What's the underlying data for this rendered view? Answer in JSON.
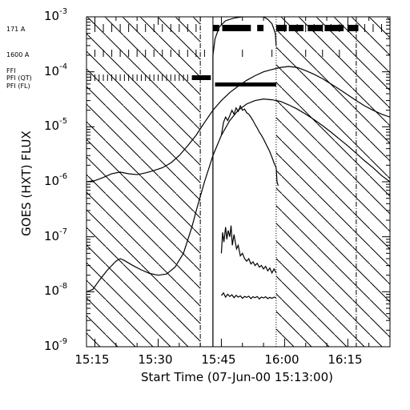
{
  "chart_data": {
    "type": "line",
    "title": "",
    "xlabel": "Start Time (07-Jun-00 15:13:00)",
    "ylabel": "GOES (HXT) FLUX",
    "xlim_minutes": [
      0,
      72
    ],
    "x_tick_labels": [
      {
        "label": "15:15",
        "minute": 2
      },
      {
        "label": "15:30",
        "minute": 17
      },
      {
        "label": "15:45",
        "minute": 32
      },
      {
        "label": "16:00",
        "minute": 47
      },
      {
        "label": "16:15",
        "minute": 62
      }
    ],
    "ylim": [
      1e-09,
      0.001
    ],
    "y_scale": "log",
    "y_ticks": [
      {
        "base": "10",
        "exp": "-9",
        "value": 1e-09
      },
      {
        "base": "10",
        "exp": "-8",
        "value": 1e-08
      },
      {
        "base": "10",
        "exp": "-7",
        "value": 1e-07
      },
      {
        "base": "10",
        "exp": "-6",
        "value": 1e-06
      },
      {
        "base": "10",
        "exp": "-5",
        "value": 1e-05
      },
      {
        "base": "10",
        "exp": "-4",
        "value": 0.0001
      },
      {
        "base": "10",
        "exp": "-3",
        "value": 0.001
      }
    ],
    "instrument_labels": [
      "171 A",
      "1600 A",
      "FFI",
      "PFI (QT)",
      "PFI (FL)"
    ],
    "hatched_intervals_minutes": [
      [
        0,
        27
      ],
      [
        45,
        72
      ]
    ],
    "window_lines_minutes": {
      "dash_dot": 27,
      "solid": 30,
      "dotted": 45,
      "dash_dot_2": 64
    },
    "series": [
      {
        "points": [
          [
            0,
            1e-06
          ],
          [
            2,
            1.05e-06
          ],
          [
            4,
            1.2e-06
          ],
          [
            6,
            1.4e-06
          ],
          [
            8,
            1.5e-06
          ],
          [
            10,
            1.4e-06
          ],
          [
            12,
            1.35e-06
          ],
          [
            14,
            1.45e-06
          ],
          [
            16,
            1.6e-06
          ],
          [
            18,
            1.8e-06
          ],
          [
            20,
            2.2e-06
          ],
          [
            22,
            3e-06
          ],
          [
            24,
            4.5e-06
          ],
          [
            26,
            7e-06
          ],
          [
            28,
            1.2e-05
          ],
          [
            30,
            2e-05
          ],
          [
            32,
            3e-05
          ],
          [
            34,
            4.2e-05
          ],
          [
            36,
            5.5e-05
          ],
          [
            38,
            7e-05
          ],
          [
            40,
            8.5e-05
          ],
          [
            42,
            0.0001
          ],
          [
            44,
            0.00011
          ],
          [
            46,
            0.00012
          ],
          [
            48,
            0.000125
          ],
          [
            50,
            0.00012
          ],
          [
            52,
            0.000105
          ],
          [
            54,
            9e-05
          ],
          [
            56,
            7.5e-05
          ],
          [
            58,
            6e-05
          ],
          [
            60,
            4.8e-05
          ],
          [
            62,
            3.8e-05
          ],
          [
            64,
            3e-05
          ],
          [
            66,
            2.4e-05
          ],
          [
            68,
            2e-05
          ],
          [
            70,
            1.7e-05
          ],
          [
            72,
            1.5e-05
          ]
        ]
      },
      {
        "points": [
          [
            0,
            1e-08
          ],
          [
            1.5,
            1.1e-08
          ],
          [
            3,
            1.6e-08
          ],
          [
            5,
            2.5e-08
          ],
          [
            7,
            3.6e-08
          ],
          [
            8,
            4e-08
          ],
          [
            9,
            3.7e-08
          ],
          [
            11,
            3e-08
          ],
          [
            13,
            2.5e-08
          ],
          [
            15,
            2.15e-08
          ],
          [
            17,
            2e-08
          ],
          [
            19,
            2.1e-08
          ],
          [
            21,
            2.8e-08
          ],
          [
            23,
            5e-08
          ],
          [
            25,
            1.5e-07
          ],
          [
            26.5,
            4e-07
          ],
          [
            28,
            1e-06
          ],
          [
            30,
            3e-06
          ],
          [
            32,
            7e-06
          ],
          [
            34,
            1.3e-05
          ],
          [
            36,
            2e-05
          ],
          [
            38,
            2.6e-05
          ],
          [
            40,
            3e-05
          ],
          [
            42,
            3.2e-05
          ],
          [
            44,
            3.1e-05
          ],
          [
            46,
            2.9e-05
          ],
          [
            48,
            2.5e-05
          ],
          [
            50,
            2.1e-05
          ],
          [
            52,
            1.7e-05
          ],
          [
            54,
            1.35e-05
          ],
          [
            56,
            1.05e-05
          ],
          [
            58,
            8e-06
          ],
          [
            60,
            6e-06
          ],
          [
            62,
            4.5e-06
          ],
          [
            64,
            3.3e-06
          ],
          [
            66,
            2.4e-06
          ],
          [
            68,
            1.8e-06
          ],
          [
            70,
            1.3e-06
          ],
          [
            72,
            1e-06
          ]
        ]
      },
      {
        "points": [
          [
            30,
            1e-09
          ],
          [
            30,
            0.0002
          ],
          [
            30.5,
            0.0004
          ],
          [
            31.5,
            0.00065
          ],
          [
            33,
            0.00085
          ],
          [
            35,
            0.00095
          ],
          [
            37,
            0.001
          ],
          [
            40,
            0.001
          ],
          [
            42,
            0.001
          ],
          [
            43,
            0.0009
          ],
          [
            44,
            0.00075
          ],
          [
            44.8,
            0.0005
          ],
          [
            45,
            0.0003
          ]
        ]
      },
      {
        "points": [
          [
            32,
            7e-06
          ],
          [
            32.5,
            1.2e-05
          ],
          [
            33,
            1.5e-05
          ],
          [
            33.5,
            1.3e-05
          ],
          [
            34,
            1.6e-05
          ],
          [
            34.5,
            2e-05
          ],
          [
            35,
            1.7e-05
          ],
          [
            35.5,
            2.2e-05
          ],
          [
            36,
            1.9e-05
          ],
          [
            36.5,
            2.4e-05
          ],
          [
            37,
            2e-05
          ],
          [
            37.5,
            2.1e-05
          ],
          [
            38,
            1.8e-05
          ],
          [
            38.5,
            1.7e-05
          ],
          [
            39,
            1.5e-05
          ],
          [
            39.5,
            1.3e-05
          ],
          [
            40,
            1.1e-05
          ],
          [
            40.5,
            9.5e-06
          ],
          [
            41,
            8e-06
          ],
          [
            41.5,
            7e-06
          ],
          [
            42,
            6e-06
          ],
          [
            42.5,
            5e-06
          ],
          [
            43,
            4.2e-06
          ],
          [
            43.5,
            3.5e-06
          ],
          [
            44,
            2.8e-06
          ],
          [
            44.5,
            2.2e-06
          ],
          [
            45,
            1.8e-06
          ],
          [
            45.2,
            1e-06
          ],
          [
            45.5,
            8.5e-07
          ]
        ]
      },
      {
        "points": [
          [
            32,
            5e-08
          ],
          [
            32.3,
            1.2e-07
          ],
          [
            32.6,
            8e-08
          ],
          [
            33,
            1.5e-07
          ],
          [
            33.3,
            9e-08
          ],
          [
            33.6,
            1.3e-07
          ],
          [
            34,
            1e-07
          ],
          [
            34.3,
            1.6e-07
          ],
          [
            34.6,
            7e-08
          ],
          [
            35,
            1.1e-07
          ],
          [
            35.3,
            8e-08
          ],
          [
            35.6,
            6e-08
          ],
          [
            36,
            7e-08
          ],
          [
            36.5,
            4.5e-08
          ],
          [
            37,
            5e-08
          ],
          [
            37.5,
            4e-08
          ],
          [
            38,
            3.6e-08
          ],
          [
            38.5,
            4e-08
          ],
          [
            39,
            3.2e-08
          ],
          [
            39.5,
            3.5e-08
          ],
          [
            40,
            3e-08
          ],
          [
            40.5,
            3.3e-08
          ],
          [
            41,
            2.8e-08
          ],
          [
            41.5,
            3e-08
          ],
          [
            42,
            2.6e-08
          ],
          [
            42.5,
            2.9e-08
          ],
          [
            43,
            2.4e-08
          ],
          [
            43.5,
            2.7e-08
          ],
          [
            44,
            2.2e-08
          ],
          [
            44.5,
            2.6e-08
          ],
          [
            45,
            2.2e-08
          ]
        ]
      },
      {
        "points": [
          [
            32,
            8.5e-09
          ],
          [
            32.5,
            9.5e-09
          ],
          [
            33,
            8e-09
          ],
          [
            33.5,
            9e-09
          ],
          [
            34,
            8.2e-09
          ],
          [
            34.5,
            8.8e-09
          ],
          [
            35,
            7.8e-09
          ],
          [
            35.5,
            8.6e-09
          ],
          [
            36,
            8e-09
          ],
          [
            36.5,
            8.4e-09
          ],
          [
            37,
            7.6e-09
          ],
          [
            37.5,
            8.2e-09
          ],
          [
            38,
            7.9e-09
          ],
          [
            38.5,
            8.3e-09
          ],
          [
            39,
            7.5e-09
          ],
          [
            39.5,
            8.1e-09
          ],
          [
            40,
            7.8e-09
          ],
          [
            40.5,
            8.2e-09
          ],
          [
            41,
            7.4e-09
          ],
          [
            41.5,
            8e-09
          ],
          [
            42,
            7.7e-09
          ],
          [
            42.5,
            8.1e-09
          ],
          [
            43,
            7.5e-09
          ],
          [
            43.5,
            7.9e-09
          ],
          [
            44,
            7.6e-09
          ],
          [
            44.5,
            8e-09
          ],
          [
            45,
            7.7e-09
          ]
        ]
      }
    ],
    "observation_rows": [
      {
        "label": "171 A",
        "sparse_minutes": [
          0,
          2,
          4,
          6,
          8,
          10,
          12,
          14,
          16,
          18,
          20,
          22,
          24,
          26,
          47,
          50,
          52,
          54,
          56,
          58,
          60,
          62,
          64,
          66,
          68,
          70
        ],
        "dense_intervals": [
          [
            30,
            31.5
          ],
          [
            32.2,
            39
          ],
          [
            40.5,
            42
          ],
          [
            45,
            47.5
          ],
          [
            48,
            51.5
          ],
          [
            52.5,
            56
          ],
          [
            56.5,
            61
          ],
          [
            62,
            64.5
          ]
        ]
      },
      {
        "label": "1600 A",
        "sparse_minutes": [
          0,
          2,
          4,
          6,
          8,
          10,
          12,
          14,
          16,
          18,
          20,
          22,
          24,
          26,
          28,
          37,
          44,
          52,
          56,
          60,
          64
        ],
        "dense_intervals": []
      },
      {
        "label": "PFI (QT)",
        "sparse_minutes": [
          0,
          1,
          2,
          3,
          4,
          5,
          6,
          7,
          8,
          9,
          10,
          11,
          12,
          13,
          14,
          15,
          16,
          17,
          18,
          19,
          20,
          21,
          22,
          23,
          24
        ],
        "dense_intervals": [
          [
            25,
            29.5
          ]
        ]
      },
      {
        "label": "PFI (FL)",
        "sparse_minutes": [],
        "dense_intervals": [
          [
            30.5,
            45
          ]
        ]
      }
    ]
  }
}
